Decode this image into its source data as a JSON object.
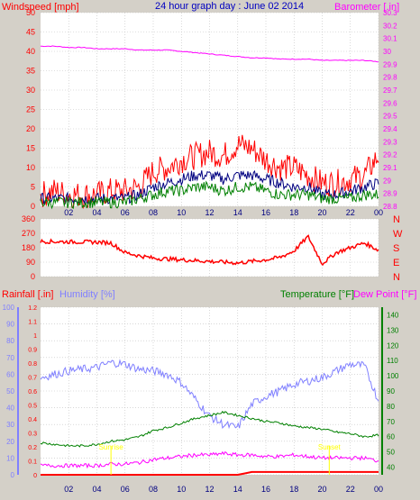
{
  "colors": {
    "background": "#d4d0c8",
    "plot": "#ffffff",
    "grid": "#c0c0c0",
    "wind": "#ff0000",
    "gust": "#ff0000",
    "avg": "#008000",
    "wind_dark": "#000080",
    "barometer": "#ff00ff",
    "direction": "#ff0000",
    "rain": "#ff0000",
    "humidity": "#8080ff",
    "temperature": "#008000",
    "dewpoint": "#ff00ff",
    "title": "#0000c0",
    "tick": "#000080",
    "sun": "#ffff00"
  },
  "chart_data": [
    {
      "type": "line",
      "title": "24 hour graph day : June 02 2014",
      "ylabel": "Windspeed [mph]",
      "y2label": "Barometer [.in]",
      "x_ticks": [
        "02",
        "04",
        "06",
        "08",
        "10",
        "12",
        "14",
        "16",
        "18",
        "20",
        "22",
        "00"
      ],
      "ylim": [
        0,
        50
      ],
      "y_ticks": [
        "0",
        "5",
        "10",
        "15",
        "20",
        "25",
        "30",
        "35",
        "40",
        "45",
        "50"
      ],
      "y2lim": [
        28.8,
        30.3
      ],
      "y2_ticks": [
        "28.8",
        "28.9",
        "29",
        "29.1",
        "29.2",
        "29.3",
        "29.4",
        "29.5",
        "29.6",
        "29.7",
        "29.8",
        "29.9",
        "30",
        "30.1",
        "30.2",
        "30.3"
      ],
      "x_hours": [
        0,
        1,
        2,
        3,
        4,
        5,
        6,
        7,
        8,
        9,
        10,
        11,
        12,
        13,
        14,
        15,
        16,
        17,
        18,
        19,
        20,
        21,
        22,
        23,
        24
      ],
      "series": [
        {
          "key": "barometer",
          "values": [
            30.04,
            30.04,
            30.03,
            30.03,
            30.02,
            30.02,
            30.02,
            30.01,
            30.01,
            30.01,
            30.0,
            29.99,
            29.98,
            29.97,
            29.96,
            29.95,
            29.95,
            29.94,
            29.94,
            29.94,
            29.93,
            29.93,
            29.93,
            29.93,
            29.92
          ]
        },
        {
          "key": "gust",
          "values": [
            3,
            4,
            3,
            3,
            3,
            4,
            4,
            5,
            9,
            10,
            12,
            13,
            14,
            13,
            16,
            15,
            12,
            10,
            10,
            8,
            6,
            6,
            7,
            8,
            13
          ]
        },
        {
          "key": "wind",
          "values": [
            2,
            2,
            2,
            2,
            2,
            2,
            2,
            3,
            5,
            6,
            7,
            8,
            8,
            7,
            8,
            8,
            7,
            6,
            5,
            5,
            3,
            3,
            4,
            5,
            6
          ]
        },
        {
          "key": "avg",
          "values": [
            1,
            1,
            1,
            1,
            1,
            1,
            1,
            2,
            3,
            4,
            4,
            5,
            5,
            4,
            5,
            5,
            4,
            3,
            3,
            3,
            2,
            2,
            2,
            3,
            3
          ]
        }
      ]
    },
    {
      "type": "line",
      "y_ticks": [
        "0",
        "90",
        "180",
        "270",
        "360"
      ],
      "y_compass": [
        "N",
        "W",
        "S",
        "E",
        "N"
      ],
      "ylim": [
        0,
        360
      ],
      "x_hours": [
        0,
        1,
        2,
        3,
        4,
        5,
        6,
        7,
        8,
        9,
        10,
        11,
        12,
        13,
        14,
        15,
        16,
        17,
        18,
        19,
        20,
        21,
        22,
        23,
        24
      ],
      "series": [
        {
          "key": "direction",
          "values": [
            220,
            218,
            217,
            216,
            215,
            210,
            150,
            130,
            115,
            110,
            105,
            100,
            95,
            90,
            85,
            95,
            105,
            120,
            160,
            250,
            80,
            150,
            180,
            210,
            165
          ]
        }
      ]
    },
    {
      "type": "line",
      "y_label_rain": "Rainfall [.in]",
      "y_label_humidity": "Humidity [%]",
      "y_label_temp": "Temperature [°F]",
      "y_label_dew": "Dew Point [°F]",
      "humidity_ticks": [
        "0",
        "10",
        "20",
        "30",
        "40",
        "50",
        "60",
        "70",
        "80",
        "90",
        "100"
      ],
      "rain_ticks": [
        "0",
        "0.1",
        "0.2",
        "0.3",
        "0.4",
        "0.5",
        "0.6",
        "0.7",
        "0.8",
        "0.9",
        "1",
        "1.1",
        "1.2"
      ],
      "temp_ticks": [
        "40",
        "50",
        "60",
        "70",
        "80",
        "90",
        "100",
        "110",
        "120",
        "130",
        "140"
      ],
      "humidity_lim": [
        0,
        100
      ],
      "temp_lim": [
        35,
        145
      ],
      "rain_lim": [
        0,
        1.2
      ],
      "x_ticks": [
        "02",
        "04",
        "06",
        "08",
        "10",
        "12",
        "14",
        "16",
        "18",
        "20",
        "22",
        "00"
      ],
      "x_hours": [
        0,
        1,
        2,
        3,
        4,
        5,
        6,
        7,
        8,
        9,
        10,
        11,
        12,
        13,
        14,
        15,
        16,
        17,
        18,
        19,
        20,
        21,
        22,
        23,
        24
      ],
      "series": [
        {
          "key": "humidity",
          "values": [
            58,
            60,
            62,
            63,
            64,
            67,
            66,
            63,
            62,
            60,
            55,
            45,
            35,
            30,
            28,
            42,
            47,
            50,
            54,
            56,
            58,
            62,
            66,
            65,
            44
          ]
        },
        {
          "key": "temperature",
          "values": [
            56,
            55,
            54,
            54,
            55,
            57,
            58,
            60,
            64,
            66,
            69,
            72,
            74,
            76,
            74,
            72,
            70,
            69,
            67,
            66,
            65,
            63,
            62,
            60,
            61
          ]
        },
        {
          "key": "dewpoint",
          "values": [
            41,
            41,
            41,
            41,
            41,
            42,
            42,
            43,
            45,
            46,
            47,
            48,
            48,
            49,
            48,
            48,
            47,
            47,
            48,
            47,
            46,
            46,
            46,
            46,
            44
          ]
        },
        {
          "key": "rain",
          "values": [
            0,
            0,
            0,
            0,
            0,
            0,
            0,
            0,
            0,
            0,
            0,
            0,
            0,
            0,
            0,
            0.02,
            0.02,
            0.02,
            0.02,
            0.02,
            0.02,
            0.02,
            0.02,
            0.02,
            0.02
          ]
        }
      ],
      "annotations": [
        {
          "key": "sunrise",
          "text": "Sunrise",
          "hour": 5.0
        },
        {
          "key": "sunset",
          "text": "Sunset",
          "hour": 20.5
        }
      ]
    }
  ]
}
